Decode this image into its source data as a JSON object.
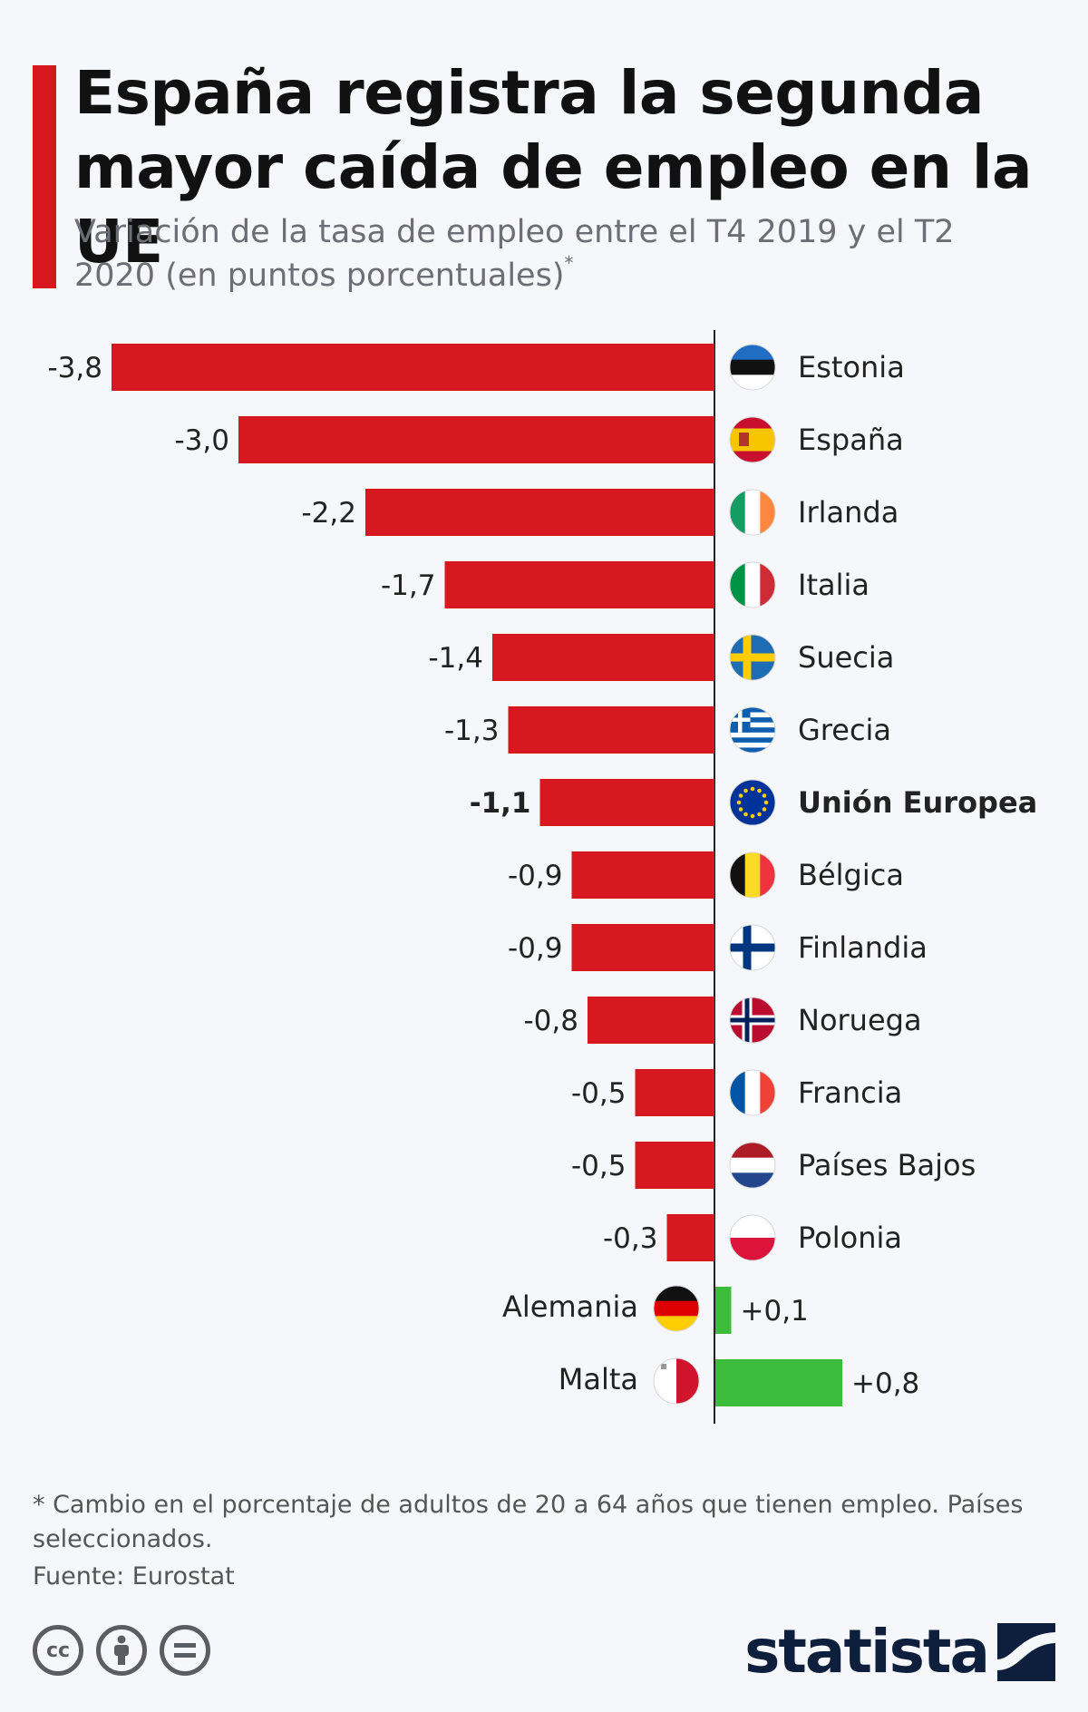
{
  "header": {
    "title": "España registra la segunda mayor caída de empleo en la UE",
    "subtitle": "Variación de la tasa de empleo entre el T4 2019 y el T2 2020 (en puntos porcentuales)",
    "subtitle_mark": "*"
  },
  "chart_data": {
    "type": "bar",
    "orientation": "horizontal",
    "title": "España registra la segunda mayor caída de empleo en la UE",
    "unit": "puntos porcentuales",
    "categories": [
      "Estonia",
      "España",
      "Irlanda",
      "Italia",
      "Suecia",
      "Grecia",
      "Unión Europea",
      "Bélgica",
      "Finlandia",
      "Noruega",
      "Francia",
      "Países Bajos",
      "Polonia",
      "Alemania",
      "Malta"
    ],
    "values": [
      -3.8,
      -3.0,
      -2.2,
      -1.7,
      -1.4,
      -1.3,
      -1.1,
      -0.9,
      -0.9,
      -0.8,
      -0.5,
      -0.5,
      -0.3,
      0.1,
      0.8
    ],
    "labels": [
      "-3,8",
      "-3,0",
      "-2,2",
      "-1,7",
      "-1,4",
      "-1,3",
      "-1,1",
      "-0,9",
      "-0,9",
      "-0,8",
      "-0,5",
      "-0,5",
      "-0,3",
      "+0,1",
      "+0,8"
    ],
    "highlight": "Unión Europea",
    "flags": [
      "estonia-flag-icon",
      "spain-flag-icon",
      "ireland-flag-icon",
      "italy-flag-icon",
      "sweden-flag-icon",
      "greece-flag-icon",
      "eu-flag-icon",
      "belgium-flag-icon",
      "finland-flag-icon",
      "norway-flag-icon",
      "france-flag-icon",
      "netherlands-flag-icon",
      "poland-flag-icon",
      "germany-flag-icon",
      "malta-flag-icon"
    ],
    "colors": {
      "negative": "#d7191f",
      "positive": "#3dbb3a"
    },
    "xlabel": "",
    "ylabel": "",
    "grid": false
  },
  "footer": {
    "footnote": " * Cambio en el porcentaje de adultos de 20 a 64 años que tienen empleo. Países seleccionados.",
    "source": "Fuente: Eurostat",
    "license_icons": [
      "cc-icon",
      "attribution-icon",
      "no-derivatives-icon"
    ],
    "brand": "statista"
  }
}
